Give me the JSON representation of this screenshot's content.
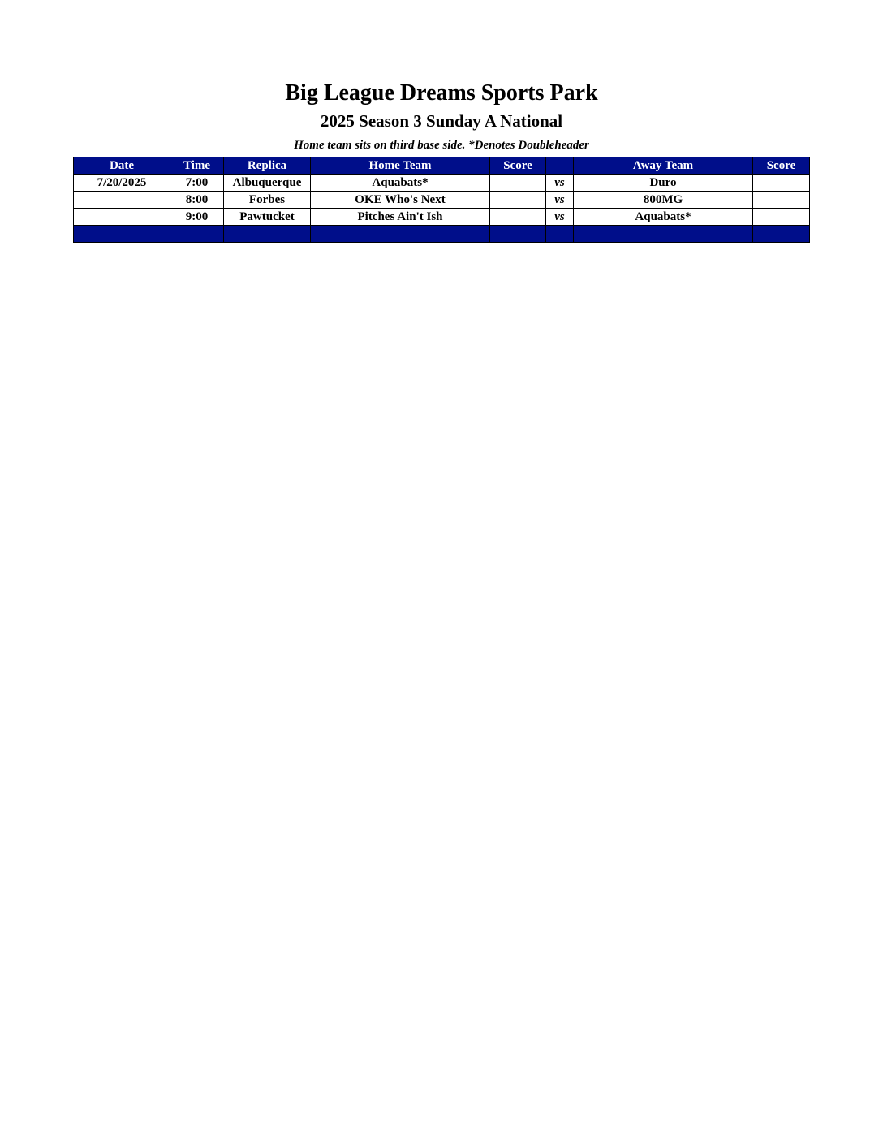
{
  "header": {
    "title": "Big League Dreams Sports Park",
    "subtitle": "2025 Season 3 Sunday A National",
    "note": "Home team sits on third base side.  *Denotes Doubleheader"
  },
  "table": {
    "columns": [
      "Date",
      "Time",
      "Replica",
      "Home Team",
      "Score",
      "",
      "Away Team",
      "Score"
    ],
    "rows": [
      {
        "date": "7/20/2025",
        "time": "7:00",
        "field": "Albuquerque",
        "home": "Aquabats*",
        "home_score": "",
        "vs": "vs",
        "away": "Duro",
        "away_score": ""
      },
      {
        "date": "",
        "time": "8:00",
        "field": "Forbes",
        "home": "OKE Who's Next",
        "home_score": "",
        "vs": "vs",
        "away": "800MG",
        "away_score": ""
      },
      {
        "date": "",
        "time": "9:00",
        "field": "Pawtucket",
        "home": "Pitches Ain't Ish",
        "home_score": "",
        "vs": "vs",
        "away": "Aquabats*",
        "away_score": ""
      }
    ]
  },
  "colors": {
    "header_bg": "#000e8a",
    "header_text": "#ffffff"
  }
}
